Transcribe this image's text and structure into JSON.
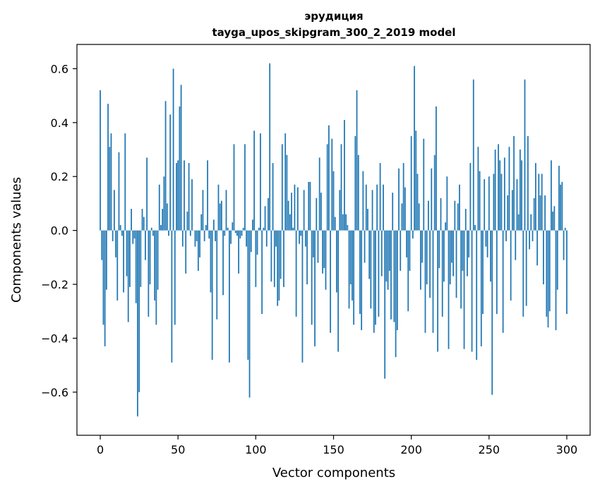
{
  "chart_data": {
    "type": "bar",
    "title": "эрудиция",
    "subtitle": "tayga_upos_skipgram_300_2_2019 model",
    "xlabel": "Vector components",
    "ylabel": "Components values",
    "xlim": [
      -15,
      315
    ],
    "ylim": [
      -0.76,
      0.69
    ],
    "x_ticks": [
      0,
      50,
      100,
      150,
      200,
      250,
      300
    ],
    "y_ticks": [
      -0.6,
      -0.4,
      -0.2,
      0.0,
      0.2,
      0.4,
      0.6
    ],
    "x_tick_labels": [
      "0",
      "50",
      "100",
      "150",
      "200",
      "250",
      "300"
    ],
    "y_tick_labels": [
      "−0.6",
      "−0.4",
      "−0.2",
      "0.0",
      "0.2",
      "0.4",
      "0.6"
    ],
    "grid": false,
    "bar_color": "#1f77b4",
    "values": [
      0.52,
      -0.11,
      -0.35,
      -0.43,
      -0.22,
      0.47,
      0.31,
      0.36,
      -0.04,
      0.15,
      -0.1,
      -0.26,
      0.29,
      0.02,
      -0.02,
      -0.23,
      0.36,
      -0.17,
      -0.34,
      -0.21,
      0.08,
      -0.05,
      -0.03,
      -0.27,
      -0.69,
      -0.6,
      -0.21,
      0.08,
      0.05,
      -0.11,
      0.27,
      -0.32,
      -0.2,
      0.01,
      -0.02,
      -0.26,
      -0.35,
      -0.22,
      0.17,
      0.02,
      0.08,
      0.2,
      0.48,
      0.1,
      -0.02,
      0.43,
      -0.49,
      0.6,
      -0.35,
      0.25,
      0.26,
      0.46,
      0.54,
      -0.06,
      0.26,
      -0.16,
      0.07,
      0.25,
      -0.02,
      0.19,
      0.0,
      -0.06,
      -0.04,
      -0.15,
      -0.1,
      0.06,
      0.15,
      -0.04,
      0.02,
      0.26,
      -0.03,
      -0.23,
      -0.48,
      0.04,
      -0.04,
      -0.33,
      0.17,
      0.1,
      0.11,
      -0.24,
      -0.02,
      0.15,
      0.01,
      -0.49,
      -0.05,
      0.03,
      0.32,
      -0.01,
      -0.02,
      -0.16,
      -0.03,
      -0.02,
      0.01,
      0.32,
      -0.06,
      -0.48,
      -0.62,
      -0.08,
      0.04,
      0.37,
      -0.21,
      -0.09,
      0.01,
      0.36,
      -0.31,
      0.01,
      0.09,
      -0.06,
      0.12,
      0.62,
      -0.19,
      0.25,
      -0.21,
      -0.06,
      -0.28,
      -0.26,
      -0.18,
      0.32,
      -0.21,
      0.36,
      0.28,
      0.11,
      0.06,
      0.14,
      0.01,
      0.17,
      -0.32,
      0.16,
      -0.05,
      -0.02,
      -0.49,
      0.15,
      -0.06,
      -0.2,
      0.18,
      0.18,
      -0.35,
      -0.1,
      -0.43,
      0.12,
      -0.12,
      0.27,
      0.14,
      -0.16,
      -0.14,
      -0.22,
      0.32,
      0.39,
      -0.38,
      0.34,
      0.22,
      0.05,
      -0.23,
      -0.45,
      0.15,
      0.32,
      0.06,
      0.41,
      0.06,
      0.02,
      -0.29,
      -0.2,
      -0.26,
      -0.35,
      0.35,
      0.52,
      0.28,
      -0.31,
      -0.37,
      0.22,
      -0.12,
      0.17,
      0.08,
      -0.18,
      -0.29,
      0.15,
      -0.38,
      -0.35,
      0.17,
      -0.32,
      0.25,
      -0.17,
      0.17,
      -0.55,
      -0.19,
      -0.22,
      -0.15,
      -0.33,
      0.14,
      -0.34,
      -0.47,
      -0.37,
      0.23,
      -0.15,
      0.1,
      0.25,
      0.16,
      -0.1,
      -0.3,
      -0.15,
      0.35,
      -0.03,
      0.61,
      0.37,
      0.21,
      0.1,
      -0.22,
      -0.12,
      0.34,
      -0.38,
      -0.2,
      0.11,
      -0.25,
      0.23,
      -0.38,
      0.28,
      0.46,
      -0.45,
      -0.14,
      0.12,
      -0.32,
      -0.19,
      0.03,
      0.2,
      -0.44,
      -0.2,
      -0.12,
      -0.17,
      0.11,
      -0.25,
      0.1,
      0.17,
      -0.29,
      -0.15,
      -0.44,
      0.08,
      -0.17,
      -0.1,
      0.25,
      -0.45,
      0.56,
      0.02,
      -0.48,
      0.31,
      0.22,
      -0.43,
      -0.31,
      0.19,
      -0.06,
      -0.1,
      0.2,
      -0.19,
      -0.61,
      0.21,
      0.3,
      -0.31,
      0.32,
      0.26,
      0.21,
      -0.38,
      0.27,
      -0.04,
      0.13,
      0.31,
      -0.26,
      0.15,
      0.35,
      -0.11,
      0.19,
      0.06,
      0.3,
      0.26,
      -0.32,
      0.56,
      -0.28,
      0.35,
      -0.07,
      0.06,
      -0.04,
      0.12,
      0.25,
      -0.13,
      0.21,
      0.13,
      0.21,
      -0.2,
      0.13,
      -0.32,
      -0.36,
      -0.3,
      0.26,
      0.07,
      0.09,
      -0.37,
      -0.22,
      0.24,
      0.17,
      0.18,
      -0.11,
      0.01,
      -0.31
    ]
  }
}
